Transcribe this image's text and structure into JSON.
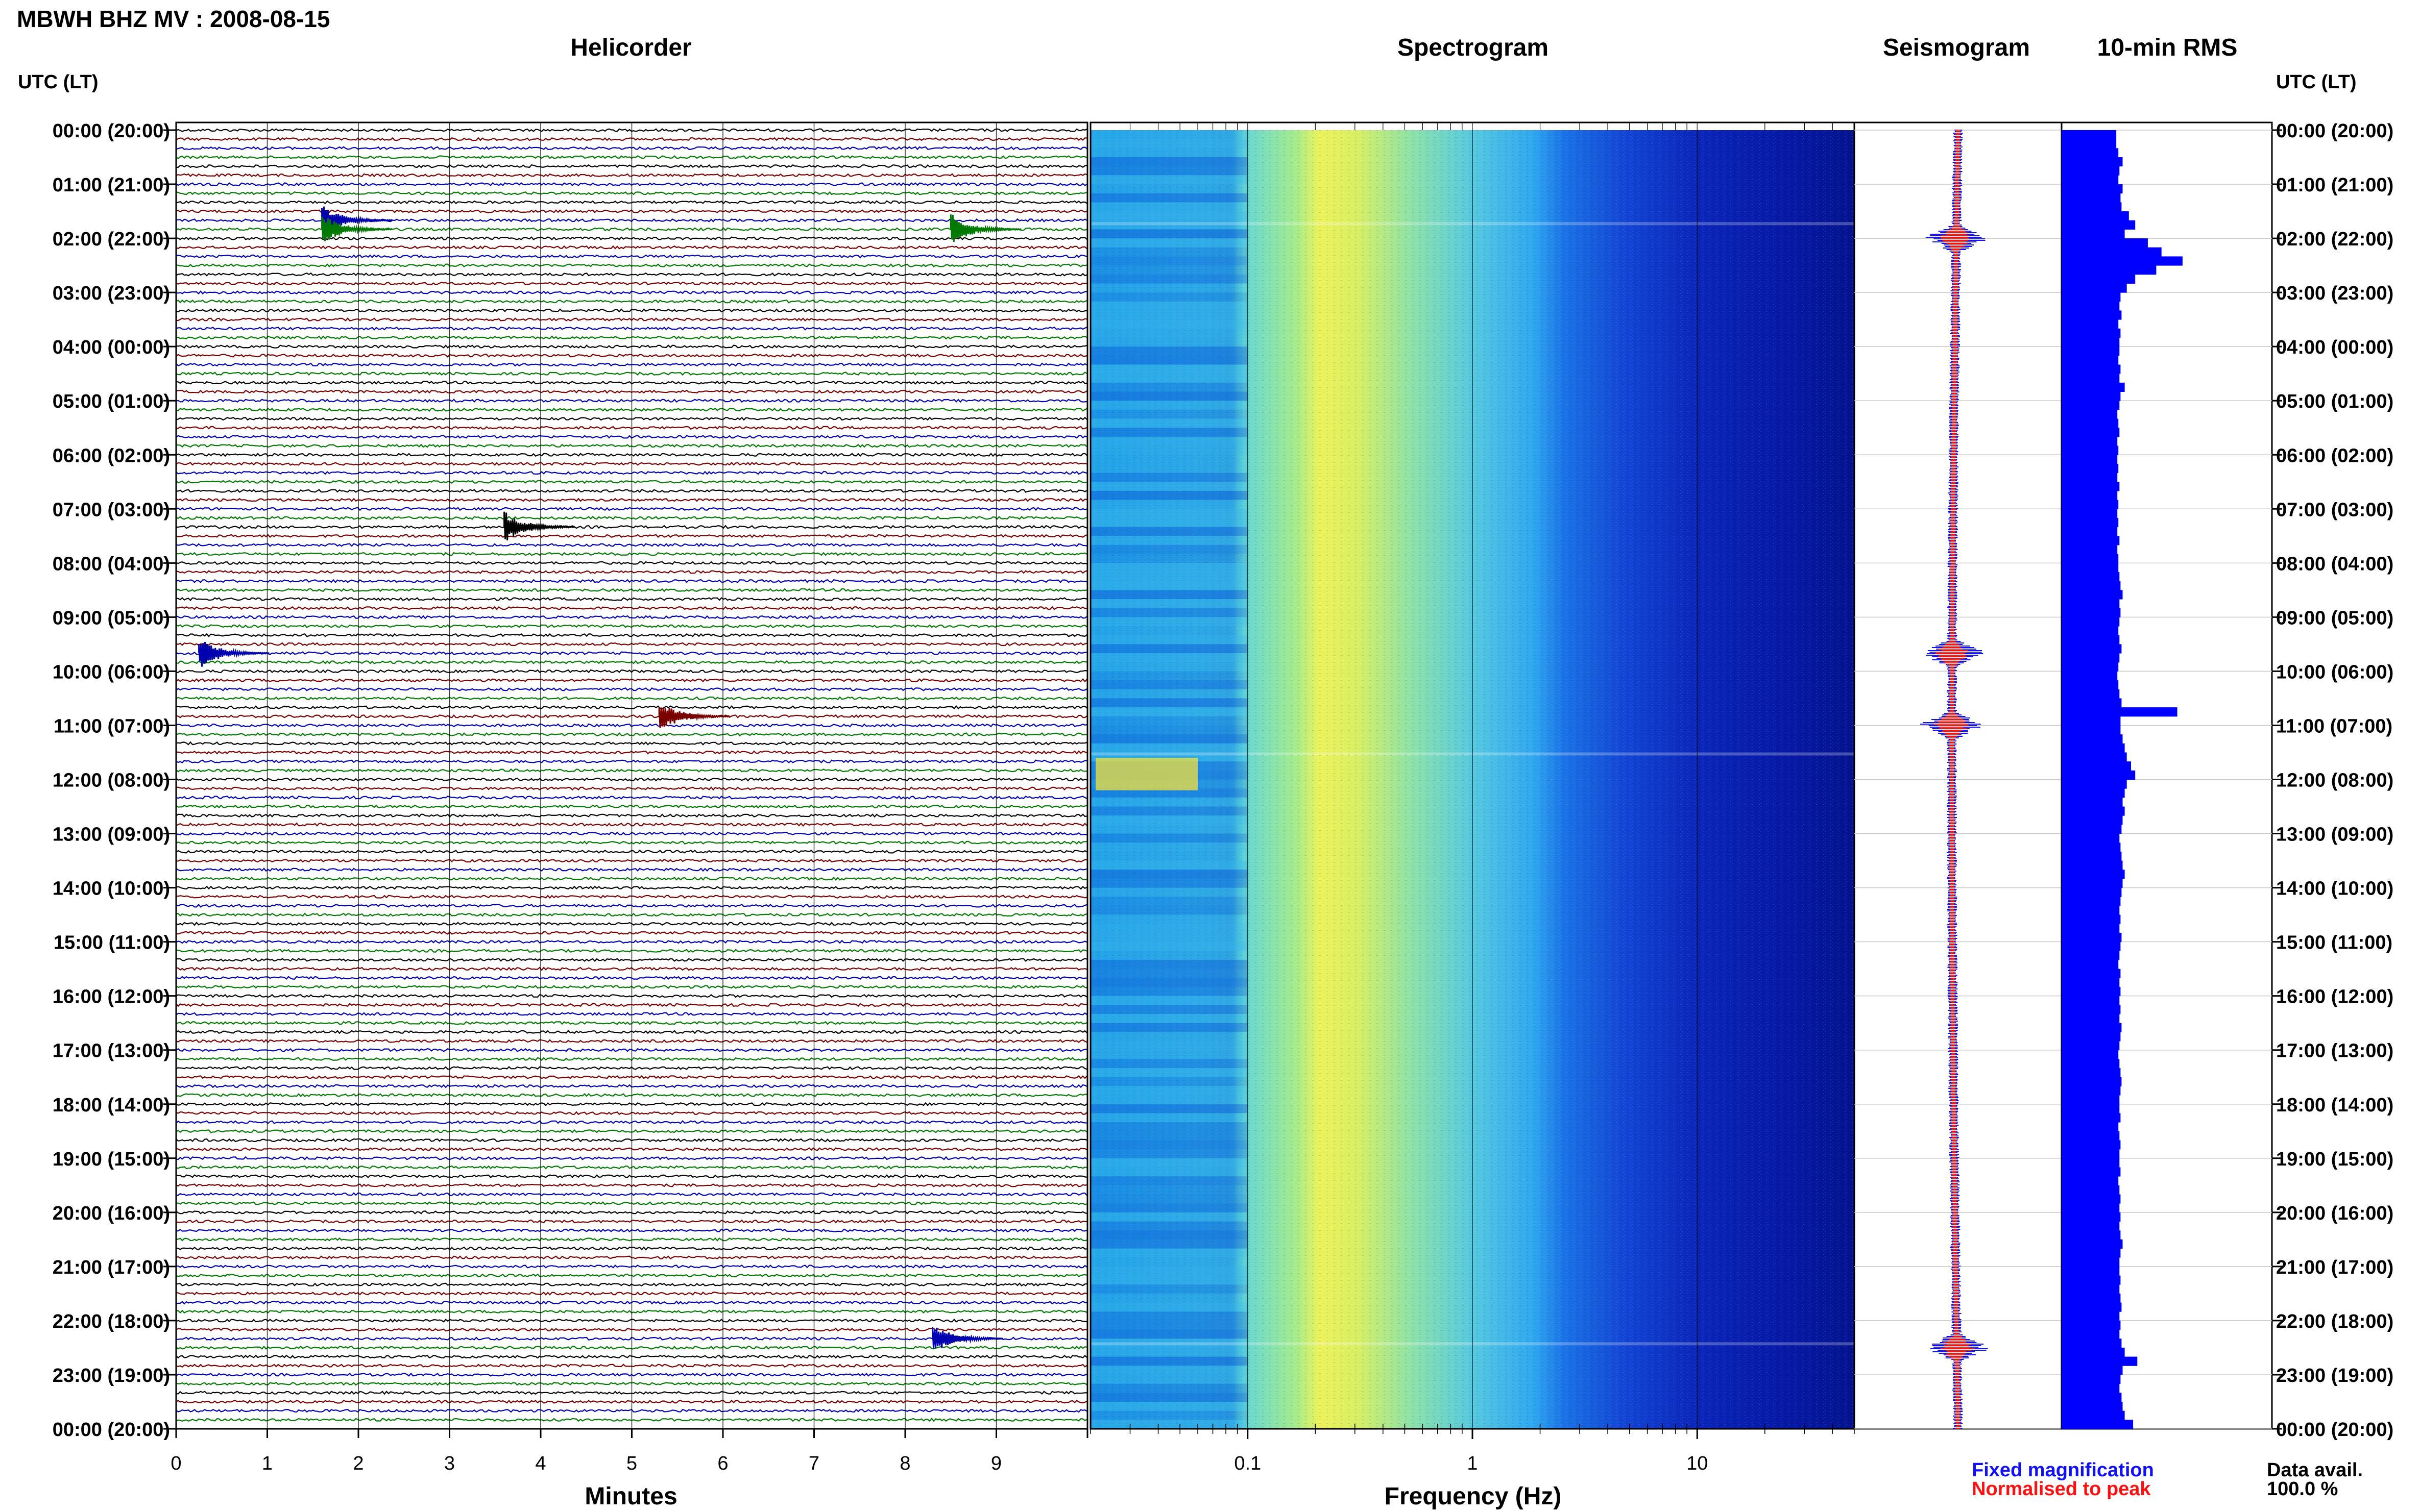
{
  "title": "MBWH BHZ MV : 2008-08-15",
  "panels": {
    "helicorder": "Helicorder",
    "spectrogram": "Spectrogram",
    "seismogram": "Seismogram",
    "rms": "10-min RMS"
  },
  "time_axis_header_left": "UTC (LT)",
  "time_axis_header_right": "UTC (LT)",
  "hour_labels": [
    "00:00 (20:00)",
    "01:00 (21:00)",
    "02:00 (22:00)",
    "03:00 (23:00)",
    "04:00 (00:00)",
    "05:00 (01:00)",
    "06:00 (02:00)",
    "07:00 (03:00)",
    "08:00 (04:00)",
    "09:00 (05:00)",
    "10:00 (06:00)",
    "11:00 (07:00)",
    "12:00 (08:00)",
    "13:00 (09:00)",
    "14:00 (10:00)",
    "15:00 (11:00)",
    "16:00 (12:00)",
    "17:00 (13:00)",
    "18:00 (14:00)",
    "19:00 (15:00)",
    "20:00 (16:00)",
    "21:00 (17:00)",
    "22:00 (18:00)",
    "23:00 (19:00)",
    "00:00 (20:00)"
  ],
  "helicorder_xlabel": "Minutes",
  "helicorder_ticks": [
    "0",
    "1",
    "2",
    "3",
    "4",
    "5",
    "6",
    "7",
    "8",
    "9"
  ],
  "spectrogram_xlabel": "Frequency (Hz)",
  "spectrogram_ticks": [
    "0.1",
    "1",
    "10"
  ],
  "legend": {
    "fixed": "Fixed magnification",
    "normalised": "Normalised to peak",
    "fixed_color": "#1010ff",
    "normalised_color": "#ff1010"
  },
  "data_avail": {
    "label": "Data avail.",
    "value": "100.0 %"
  },
  "colors": {
    "trace_cycle": [
      "#000000",
      "#7a0000",
      "#0000b0",
      "#007a00"
    ],
    "rms_bar": "#0000ff",
    "spectrogram_low": "#00008b",
    "spectrogram_high": "#ffff40"
  },
  "chart_data": [
    {
      "type": "line",
      "panel": "Helicorder",
      "xlabel": "Minutes",
      "xlim": [
        0,
        10
      ],
      "rows_per_hour": 6,
      "hours": 24,
      "events": [
        {
          "time": "01:40",
          "minute": 1.6
        },
        {
          "time": "01:50",
          "minute": 1.6
        },
        {
          "time": "01:50",
          "minute": 8.5
        },
        {
          "time": "07:20",
          "minute": 3.6
        },
        {
          "time": "09:40",
          "minute": 0.25
        },
        {
          "time": "10:50",
          "minute": 5.3
        },
        {
          "time": "22:20",
          "minute": 8.3
        }
      ]
    },
    {
      "type": "heatmap",
      "panel": "Spectrogram",
      "xlabel": "Frequency (Hz)",
      "xscale": "log",
      "xlim": [
        0.02,
        50
      ],
      "peak_band_hz": [
        0.2,
        0.6
      ],
      "ytime": [
        "00:00",
        "24:00"
      ]
    },
    {
      "type": "line",
      "panel": "Seismogram",
      "series": [
        {
          "name": "Fixed magnification"
        },
        {
          "name": "Normalised to peak"
        }
      ],
      "burst_times": [
        "02:00",
        "09:40",
        "11:00",
        "22:30"
      ]
    },
    {
      "type": "bar",
      "panel": "10-min RMS",
      "orientation": "horizontal",
      "bins_per_hour": 6,
      "values": [
        0.52,
        0.52,
        0.54,
        0.58,
        0.55,
        0.54,
        0.58,
        0.56,
        0.57,
        0.64,
        0.7,
        0.6,
        0.82,
        0.95,
        1.15,
        0.9,
        0.7,
        0.62,
        0.56,
        0.55,
        0.57,
        0.54,
        0.56,
        0.55,
        0.55,
        0.54,
        0.56,
        0.55,
        0.6,
        0.56,
        0.55,
        0.53,
        0.54,
        0.55,
        0.53,
        0.54,
        0.53,
        0.54,
        0.53,
        0.55,
        0.53,
        0.54,
        0.53,
        0.54,
        0.53,
        0.55,
        0.53,
        0.54,
        0.54,
        0.55,
        0.56,
        0.58,
        0.55,
        0.56,
        0.55,
        0.54,
        0.55,
        0.57,
        0.55,
        0.54,
        0.53,
        0.54,
        0.55,
        0.57,
        1.1,
        0.56,
        0.56,
        0.58,
        0.6,
        0.62,
        0.66,
        0.7,
        0.62,
        0.6,
        0.58,
        0.6,
        0.58,
        0.57,
        0.55,
        0.56,
        0.57,
        0.58,
        0.6,
        0.58,
        0.57,
        0.56,
        0.55,
        0.56,
        0.55,
        0.57,
        0.56,
        0.55,
        0.54,
        0.56,
        0.55,
        0.56,
        0.55,
        0.56,
        0.55,
        0.57,
        0.56,
        0.55,
        0.54,
        0.55,
        0.56,
        0.57,
        0.56,
        0.55,
        0.55,
        0.56,
        0.54,
        0.55,
        0.56,
        0.55,
        0.55,
        0.56,
        0.54,
        0.55,
        0.56,
        0.55,
        0.56,
        0.55,
        0.56,
        0.58,
        0.56,
        0.55,
        0.55,
        0.56,
        0.55,
        0.56,
        0.57,
        0.55,
        0.56,
        0.55,
        0.57,
        0.6,
        0.72,
        0.58,
        0.56,
        0.55,
        0.57,
        0.58,
        0.6,
        0.68
      ]
    }
  ]
}
